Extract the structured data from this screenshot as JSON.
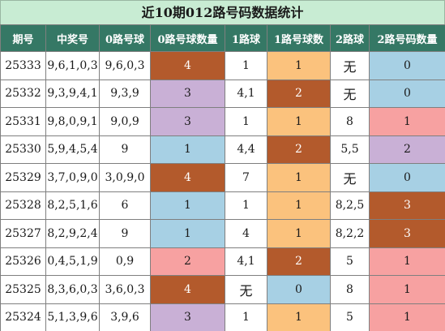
{
  "title": "近10期012路号码数据统计",
  "headers": [
    "期号",
    "中奖号",
    "0路号球",
    "0路号球数量",
    "1路球",
    "1路号球数",
    "2路球",
    "2路号码数量"
  ],
  "colors": {
    "title_bg": "#c8ecd3",
    "header_bg": "#357865",
    "brown": "#b35a2c",
    "lavender": "#c9b0d6",
    "blue": "#a7d0e4",
    "pink": "#f7a1a1",
    "orange": "#fbc27d"
  },
  "rows": [
    {
      "issue": "25333",
      "numbers": "9,6,1,0,3",
      "r0_balls": "9,6,0,3",
      "r0_count": "4",
      "r1_balls": "1",
      "r1_count": "1",
      "r2_balls": "无",
      "r2_count": "0"
    },
    {
      "issue": "25332",
      "numbers": "9,3,9,4,1",
      "r0_balls": "9,3,9",
      "r0_count": "3",
      "r1_balls": "4,1",
      "r1_count": "2",
      "r2_balls": "无",
      "r2_count": "0"
    },
    {
      "issue": "25331",
      "numbers": "9,8,0,9,1",
      "r0_balls": "9,0,9",
      "r0_count": "3",
      "r1_balls": "1",
      "r1_count": "1",
      "r2_balls": "8",
      "r2_count": "1"
    },
    {
      "issue": "25330",
      "numbers": "5,9,4,5,4",
      "r0_balls": "9",
      "r0_count": "1",
      "r1_balls": "4,4",
      "r1_count": "2",
      "r2_balls": "5,5",
      "r2_count": "2"
    },
    {
      "issue": "25329",
      "numbers": "3,7,0,9,0",
      "r0_balls": "3,0,9,0",
      "r0_count": "4",
      "r1_balls": "7",
      "r1_count": "1",
      "r2_balls": "无",
      "r2_count": "0"
    },
    {
      "issue": "25328",
      "numbers": "8,2,5,1,6",
      "r0_balls": "6",
      "r0_count": "1",
      "r1_balls": "1",
      "r1_count": "1",
      "r2_balls": "8,2,5",
      "r2_count": "3"
    },
    {
      "issue": "25327",
      "numbers": "8,2,9,2,4",
      "r0_balls": "9",
      "r0_count": "1",
      "r1_balls": "4",
      "r1_count": "1",
      "r2_balls": "8,2,2",
      "r2_count": "3"
    },
    {
      "issue": "25326",
      "numbers": "0,4,5,1,9",
      "r0_balls": "0,9",
      "r0_count": "2",
      "r1_balls": "4,1",
      "r1_count": "2",
      "r2_balls": "5",
      "r2_count": "1"
    },
    {
      "issue": "25325",
      "numbers": "8,3,6,0,3",
      "r0_balls": "3,6,0,3",
      "r0_count": "4",
      "r1_balls": "无",
      "r1_count": "0",
      "r2_balls": "8",
      "r2_count": "1"
    },
    {
      "issue": "25324",
      "numbers": "5,1,3,9,6",
      "r0_balls": "3,9,6",
      "r0_count": "3",
      "r1_balls": "1",
      "r1_count": "1",
      "r2_balls": "5",
      "r2_count": "1"
    }
  ]
}
